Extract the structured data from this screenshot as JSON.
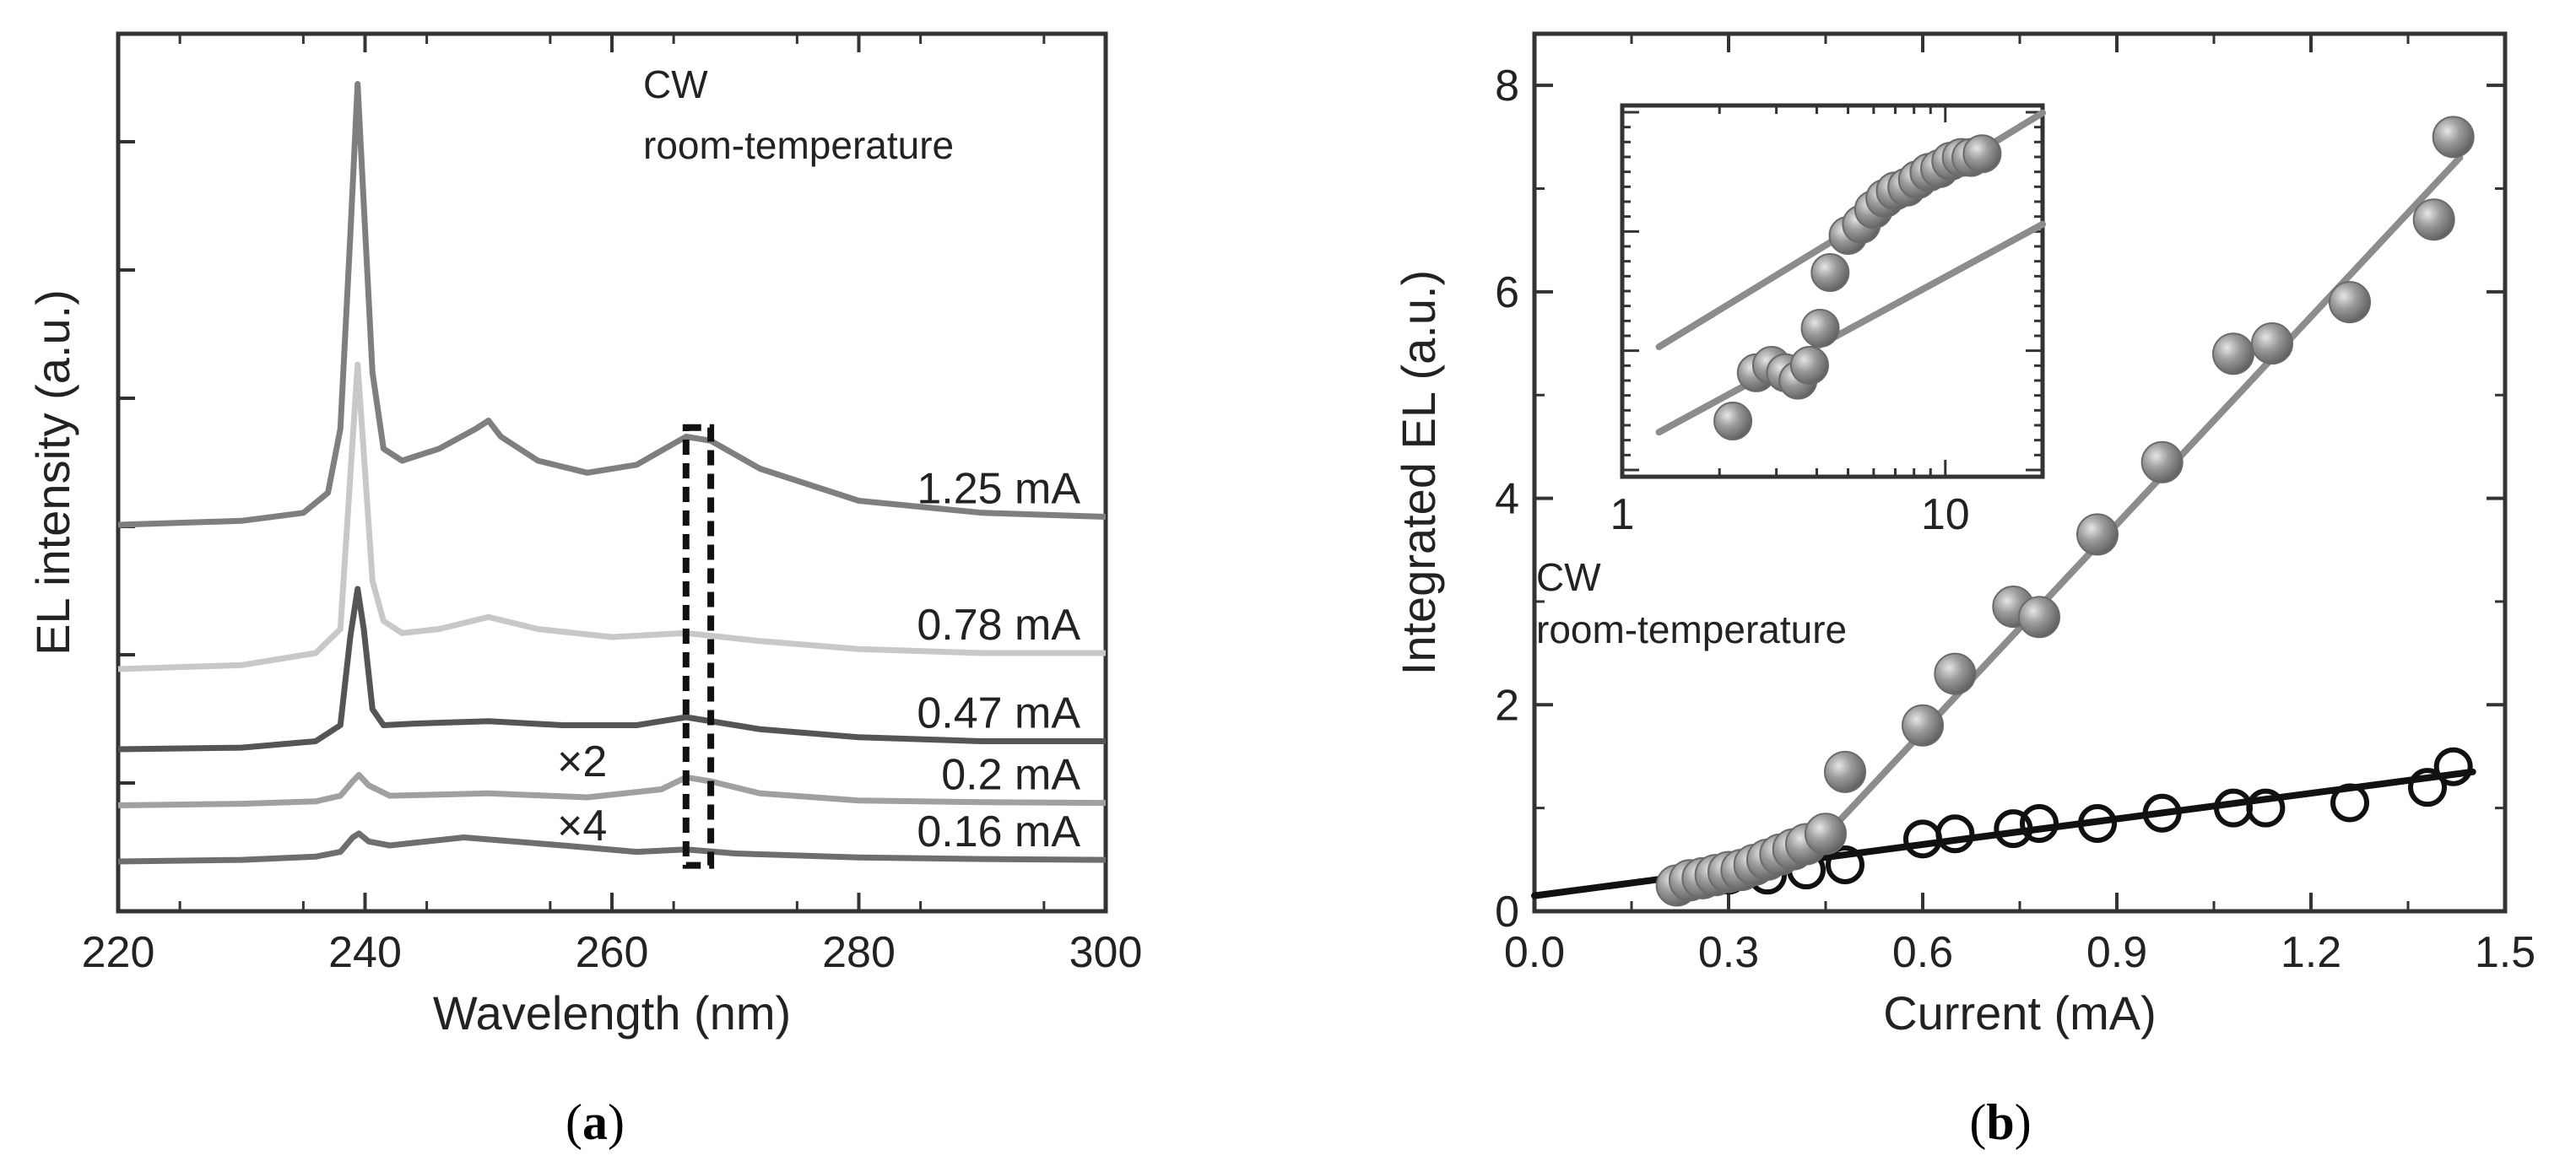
{
  "chart_data": [
    {
      "type": "line",
      "panel": "a",
      "xlabel": "Wavelength (nm)",
      "ylabel": "EL intensity (a.u.)",
      "xlim": [
        220,
        300
      ],
      "x_ticks": [
        220,
        240,
        260,
        280,
        300
      ],
      "annotation": [
        "CW",
        "room-temperature"
      ],
      "multipliers": [
        {
          "text": "×2",
          "series": "0.2 mA"
        },
        {
          "text": "×4",
          "series": "0.16 mA"
        }
      ],
      "highlight_region": [
        266,
        268
      ],
      "series": [
        {
          "name": "1.25 mA",
          "color": "#7f7f7f",
          "x": [
            220,
            230,
            235,
            237,
            238,
            238.8,
            239.4,
            239.9,
            240.6,
            241.5,
            243,
            246,
            249,
            250,
            251,
            254,
            258,
            262,
            266,
            268,
            272,
            280,
            290,
            300
          ],
          "y": [
            1.0,
            1.05,
            1.15,
            1.4,
            2.2,
            4.6,
            6.5,
            5.0,
            2.9,
            1.95,
            1.8,
            1.95,
            2.2,
            2.3,
            2.1,
            1.8,
            1.65,
            1.75,
            2.1,
            2.05,
            1.7,
            1.3,
            1.15,
            1.1
          ]
        },
        {
          "name": "0.78 mA",
          "color": "#c8c8c8",
          "x": [
            220,
            230,
            236,
            238,
            238.8,
            239.4,
            239.9,
            240.6,
            241.5,
            243,
            246,
            250,
            254,
            260,
            266,
            272,
            280,
            290,
            300
          ],
          "y": [
            0.1,
            0.15,
            0.3,
            0.6,
            2.5,
            3.9,
            2.8,
            1.2,
            0.7,
            0.55,
            0.6,
            0.75,
            0.6,
            0.5,
            0.55,
            0.45,
            0.35,
            0.3,
            0.3
          ]
        },
        {
          "name": "0.47 mA",
          "color": "#555555",
          "x": [
            220,
            230,
            236,
            238,
            238.8,
            239.4,
            239.9,
            240.6,
            241.5,
            244,
            250,
            256,
            262,
            266,
            272,
            280,
            290,
            300
          ],
          "y": [
            0.0,
            0.02,
            0.1,
            0.3,
            1.4,
            2.0,
            1.5,
            0.5,
            0.3,
            0.32,
            0.35,
            0.3,
            0.3,
            0.4,
            0.25,
            0.15,
            0.1,
            0.1
          ]
        },
        {
          "name": "0.2 mA",
          "color": "#a0a0a0",
          "x": [
            220,
            230,
            236,
            238,
            239,
            239.5,
            240.3,
            242,
            250,
            258,
            264,
            266,
            268,
            272,
            280,
            290,
            300
          ],
          "y": [
            0.0,
            0.02,
            0.05,
            0.12,
            0.3,
            0.38,
            0.25,
            0.12,
            0.15,
            0.1,
            0.2,
            0.35,
            0.3,
            0.15,
            0.06,
            0.04,
            0.03
          ]
        },
        {
          "name": "0.16 mA",
          "color": "#6e6e6e",
          "x": [
            220,
            230,
            236,
            238,
            239,
            239.5,
            240.3,
            242,
            248,
            256,
            262,
            266,
            270,
            280,
            290,
            300
          ],
          "y": [
            0.0,
            0.02,
            0.06,
            0.12,
            0.3,
            0.35,
            0.25,
            0.2,
            0.3,
            0.2,
            0.12,
            0.15,
            0.1,
            0.05,
            0.03,
            0.02
          ]
        }
      ],
      "offsets": [
        3.4,
        2.5,
        1.6,
        0.9,
        0.2
      ]
    },
    {
      "type": "scatter",
      "panel": "b",
      "xlabel": "Current (mA)",
      "ylabel": "Integrated EL (a.u.)",
      "xlim": [
        0.0,
        1.5
      ],
      "ylim": [
        0,
        8.5
      ],
      "x_ticks": [
        "0.0",
        "0.3",
        "0.6",
        "0.9",
        "1.2",
        "1.5"
      ],
      "y_ticks": [
        "0",
        "2",
        "4",
        "6",
        "8"
      ],
      "annotation": [
        "CW",
        "room-temperature"
      ],
      "series": [
        {
          "name": "filled",
          "marker": "filled-sphere",
          "color": "#8c8c8c",
          "x": [
            0.22,
            0.24,
            0.26,
            0.28,
            0.3,
            0.32,
            0.34,
            0.36,
            0.38,
            0.4,
            0.42,
            0.45,
            0.48,
            0.6,
            0.65,
            0.74,
            0.78,
            0.87,
            0.97,
            1.08,
            1.14,
            1.26,
            1.39,
            1.42
          ],
          "y": [
            0.25,
            0.3,
            0.32,
            0.35,
            0.38,
            0.4,
            0.45,
            0.5,
            0.55,
            0.6,
            0.65,
            0.75,
            1.35,
            1.8,
            2.3,
            2.95,
            2.85,
            3.65,
            4.35,
            5.4,
            5.5,
            5.9,
            6.7,
            7.5
          ]
        },
        {
          "name": "open",
          "marker": "open-circle",
          "color": "#111111",
          "x": [
            0.24,
            0.3,
            0.36,
            0.42,
            0.48,
            0.6,
            0.65,
            0.74,
            0.78,
            0.87,
            0.97,
            1.08,
            1.13,
            1.26,
            1.38,
            1.42
          ],
          "y": [
            0.3,
            0.35,
            0.35,
            0.4,
            0.45,
            0.7,
            0.75,
            0.8,
            0.85,
            0.85,
            0.95,
            1.0,
            1.0,
            1.05,
            1.2,
            1.4
          ]
        }
      ],
      "fit_lines": [
        {
          "name": "filled-fit",
          "color": "#8c8c8c",
          "x": [
            0.43,
            1.43
          ],
          "y": [
            0.6,
            7.3
          ]
        },
        {
          "name": "open-fit",
          "color": "#111111",
          "x": [
            0.0,
            1.45
          ],
          "y": [
            0.15,
            1.35
          ]
        }
      ],
      "inset": {
        "type": "scatter",
        "xscale": "log",
        "xlim": [
          1,
          20
        ],
        "x_ticks": [
          "1",
          "10"
        ],
        "points_x": [
          2.2,
          2.6,
          2.9,
          3.2,
          3.5,
          3.8,
          4.1,
          4.4,
          5.0,
          5.5,
          6.0,
          6.5,
          7.0,
          7.6,
          8.2,
          8.9,
          9.6,
          10.4,
          11.2,
          12.0,
          13.0
        ],
        "points_y": [
          0.15,
          0.28,
          0.3,
          0.28,
          0.26,
          0.3,
          0.4,
          0.55,
          0.65,
          0.68,
          0.72,
          0.75,
          0.77,
          0.78,
          0.8,
          0.82,
          0.83,
          0.85,
          0.86,
          0.86,
          0.87
        ],
        "fit_lines": [
          {
            "name": "inset-fit-upper",
            "x": [
              1.3,
              20
            ],
            "y": [
              0.35,
              0.98
            ]
          },
          {
            "name": "inset-fit-lower",
            "x": [
              1.3,
              20
            ],
            "y": [
              0.12,
              0.68
            ]
          }
        ]
      }
    }
  ],
  "panels": {
    "a_label": "a",
    "b_label": "b"
  },
  "colors": {
    "axis": "#333333",
    "background": "#ffffff"
  }
}
